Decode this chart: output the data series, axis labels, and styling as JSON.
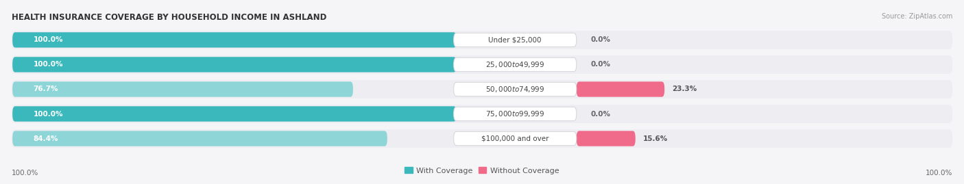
{
  "title": "HEALTH INSURANCE COVERAGE BY HOUSEHOLD INCOME IN ASHLAND",
  "source": "Source: ZipAtlas.com",
  "categories": [
    "Under $25,000",
    "$25,000 to $49,999",
    "$50,000 to $74,999",
    "$75,000 to $99,999",
    "$100,000 and over"
  ],
  "with_coverage": [
    100.0,
    100.0,
    76.7,
    100.0,
    84.4
  ],
  "without_coverage": [
    0.0,
    0.0,
    23.3,
    0.0,
    15.6
  ],
  "color_with_full": "#3ab8bc",
  "color_with_light": "#8ed5d8",
  "color_without_full": "#f06b8a",
  "color_without_light": "#f5adc0",
  "bar_bg": "#e4e4ea",
  "row_bg": "#ededf2",
  "fig_bg": "#f5f5f8",
  "bar_height": 0.62,
  "label_fontsize": 7.5,
  "title_fontsize": 8.5,
  "source_fontsize": 7.0,
  "cat_label_fontsize": 7.5
}
